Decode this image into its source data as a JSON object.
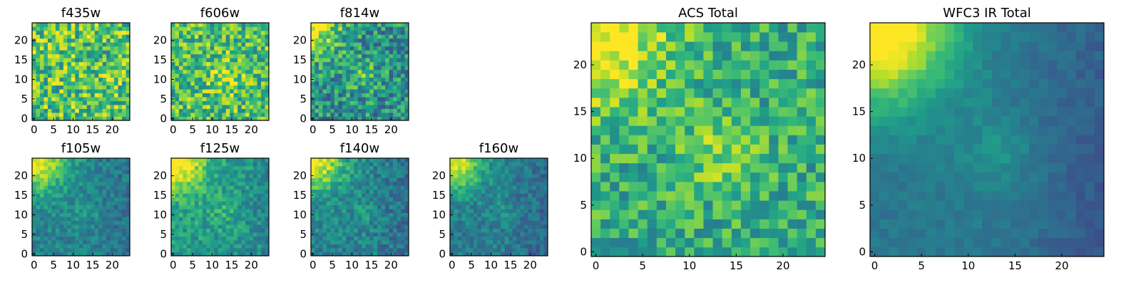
{
  "figure": {
    "description_colormap": "viridis",
    "colors": {
      "viridis_stops": [
        "#440154",
        "#482878",
        "#3e4a89",
        "#31688e",
        "#26828e",
        "#1f9e89",
        "#35b779",
        "#6ece58",
        "#b5de2b",
        "#fde725"
      ],
      "axis_line": "#000000",
      "background": "#ffffff"
    }
  },
  "chart_data": [
    {
      "id": "f435w",
      "type": "heatmap",
      "title": "f435w",
      "grid_size": 25,
      "pattern": "flat",
      "mean": 0.72,
      "noise": 0.28,
      "seed": 11,
      "xticks": [
        0,
        5,
        10,
        15,
        20
      ],
      "yticks": [
        0,
        5,
        10,
        15,
        20
      ],
      "xlim": [
        0,
        24
      ],
      "ylim": [
        0,
        24
      ]
    },
    {
      "id": "f606w",
      "type": "heatmap",
      "title": "f606w",
      "grid_size": 25,
      "pattern": "flat_blob",
      "mean": 0.7,
      "noise": 0.26,
      "seed": 23,
      "xticks": [
        0,
        5,
        10,
        15,
        20
      ],
      "yticks": [
        0,
        5,
        10,
        15,
        20
      ],
      "xlim": [
        0,
        24
      ],
      "ylim": [
        0,
        24
      ]
    },
    {
      "id": "f814w",
      "type": "heatmap",
      "title": "f814w",
      "grid_size": 25,
      "pattern": "corner_blob",
      "mean": 0.5,
      "noise": 0.25,
      "seed": 37,
      "xticks": [
        0,
        5,
        10,
        15,
        20
      ],
      "yticks": [
        0,
        5,
        10,
        15,
        20
      ],
      "xlim": [
        0,
        24
      ],
      "ylim": [
        0,
        24
      ]
    },
    {
      "id": "f105w",
      "type": "heatmap",
      "title": "f105w",
      "grid_size": 25,
      "pattern": "corner_smooth",
      "mean": 0.45,
      "noise": 0.12,
      "seed": 41,
      "xticks": [
        0,
        5,
        10,
        15,
        20
      ],
      "yticks": [
        0,
        5,
        10,
        15,
        20
      ],
      "xlim": [
        0,
        24
      ],
      "ylim": [
        0,
        24
      ]
    },
    {
      "id": "f125w",
      "type": "heatmap",
      "title": "f125w",
      "grid_size": 25,
      "pattern": "corner_smooth",
      "mean": 0.55,
      "noise": 0.14,
      "seed": 53,
      "xticks": [
        0,
        5,
        10,
        15,
        20
      ],
      "yticks": [
        0,
        5,
        10,
        15,
        20
      ],
      "xlim": [
        0,
        24
      ],
      "ylim": [
        0,
        24
      ]
    },
    {
      "id": "f140w",
      "type": "heatmap",
      "title": "f140w",
      "grid_size": 25,
      "pattern": "corner_smooth",
      "mean": 0.45,
      "noise": 0.14,
      "seed": 67,
      "xticks": [
        0,
        5,
        10,
        15,
        20
      ],
      "yticks": [
        0,
        5,
        10,
        15,
        20
      ],
      "xlim": [
        0,
        24
      ],
      "ylim": [
        0,
        24
      ]
    },
    {
      "id": "f160w",
      "type": "heatmap",
      "title": "f160w",
      "grid_size": 25,
      "pattern": "corner_smooth",
      "mean": 0.42,
      "noise": 0.12,
      "seed": 79,
      "xticks": [
        0,
        5,
        10,
        15,
        20
      ],
      "yticks": [
        0,
        5,
        10,
        15,
        20
      ],
      "xlim": [
        0,
        24
      ],
      "ylim": [
        0,
        24
      ]
    },
    {
      "id": "acs_total",
      "type": "heatmap",
      "title": "ACS Total",
      "grid_size": 25,
      "pattern": "corner_blob",
      "mean": 0.62,
      "noise": 0.2,
      "seed": 97,
      "xticks": [
        0,
        5,
        10,
        15,
        20
      ],
      "yticks": [
        0,
        5,
        10,
        15,
        20
      ],
      "xlim": [
        0,
        24
      ],
      "ylim": [
        0,
        24
      ]
    },
    {
      "id": "wfc3_ir_total",
      "type": "heatmap",
      "title": "WFC3 IR Total",
      "grid_size": 25,
      "pattern": "corner_smooth_strong",
      "mean": 0.4,
      "noise": 0.05,
      "seed": 101,
      "xticks": [
        0,
        5,
        10,
        15,
        20
      ],
      "yticks": [
        0,
        5,
        10,
        15,
        20
      ],
      "xlim": [
        0,
        24
      ],
      "ylim": [
        0,
        24
      ]
    }
  ]
}
